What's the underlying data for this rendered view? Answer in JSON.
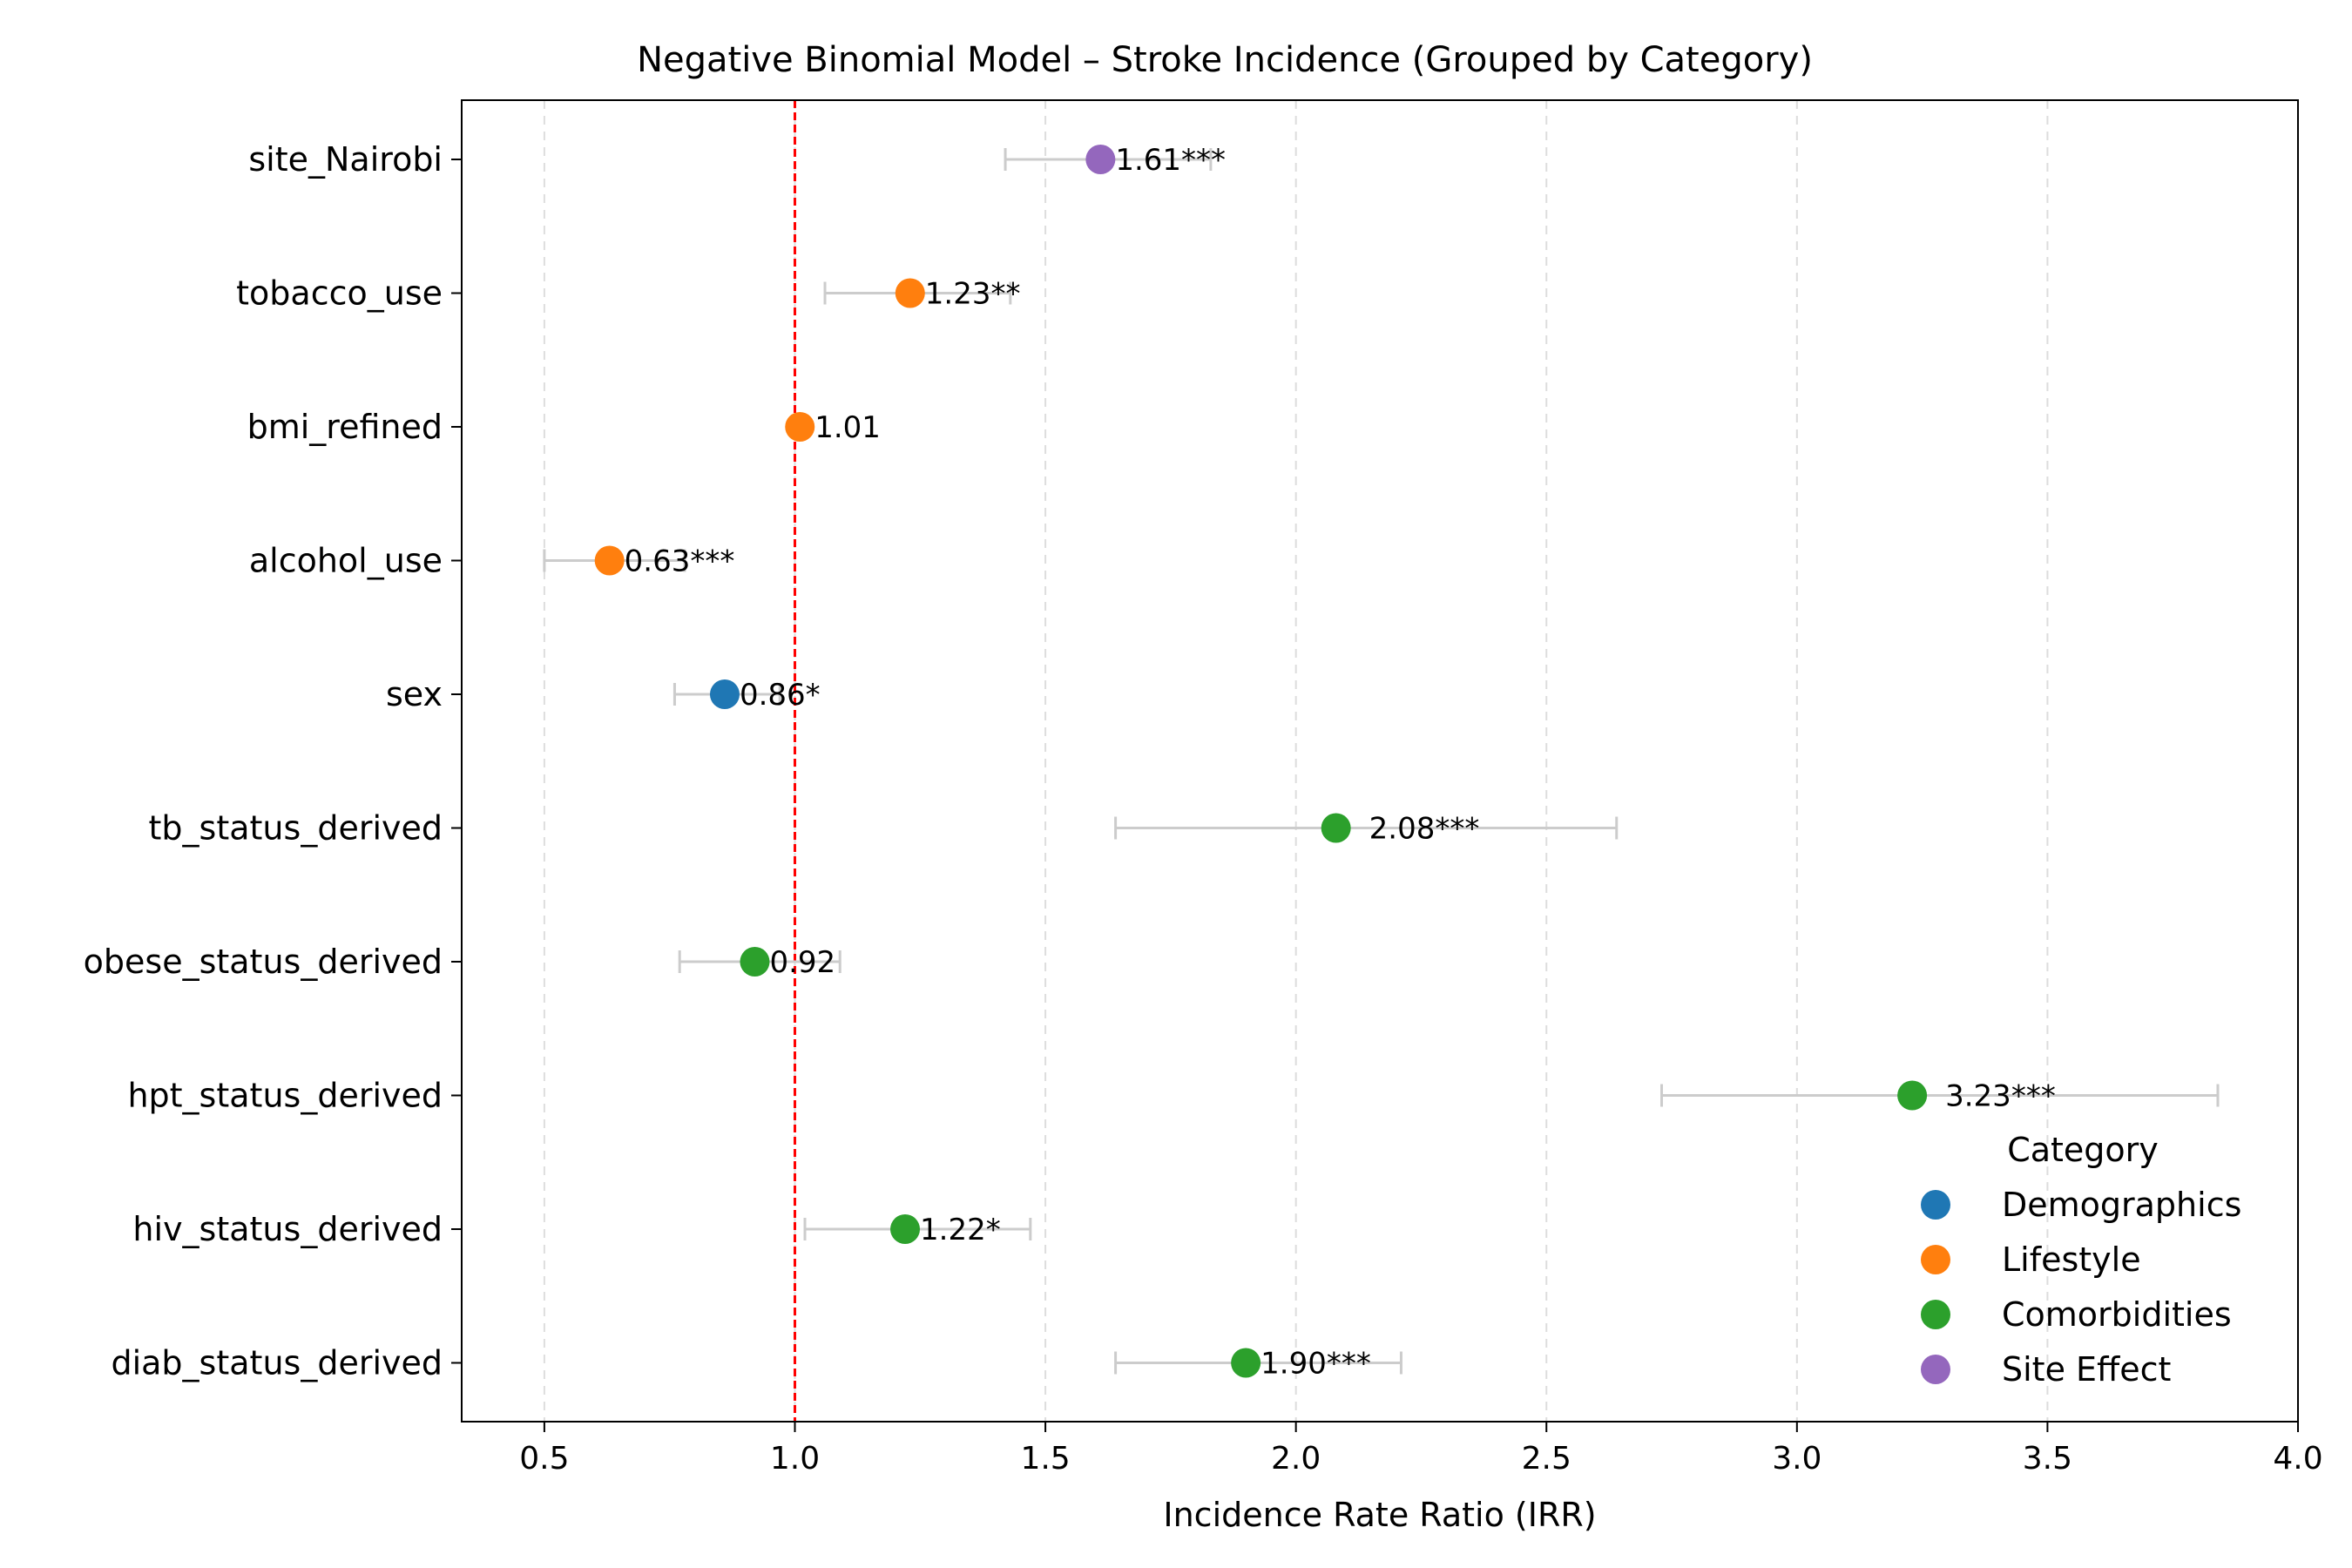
{
  "chart_data": {
    "type": "forest",
    "title": "Negative Binomial Model – Stroke Incidence (Grouped by Category)",
    "xlabel": "Incidence Rate Ratio (IRR)",
    "ylabel": "",
    "xlim": [
      0.335,
      4.0
    ],
    "xticks": [
      0.5,
      1.0,
      1.5,
      2.0,
      2.5,
      3.0,
      3.5,
      4.0
    ],
    "xtick_labels": [
      "0.5",
      "1.0",
      "1.5",
      "2.0",
      "2.5",
      "3.0",
      "3.5",
      "4.0"
    ],
    "reference_line": 1.0,
    "grid": "x-dashed",
    "legend": {
      "title": "Category",
      "placement": "lower-right",
      "entries": [
        {
          "name": "Demographics",
          "color": "#1f77b4"
        },
        {
          "name": "Lifestyle",
          "color": "#ff7f0e"
        },
        {
          "name": "Comorbidities",
          "color": "#2ca02c"
        },
        {
          "name": "Site Effect",
          "color": "#9467bd"
        }
      ]
    },
    "rows": [
      {
        "label": "site_Nairobi",
        "irr": 1.61,
        "ci_low": 1.42,
        "ci_high": 1.83,
        "annotation": "1.61***",
        "category": "Site Effect"
      },
      {
        "label": "tobacco_use",
        "irr": 1.23,
        "ci_low": 1.06,
        "ci_high": 1.43,
        "annotation": "1.23**",
        "category": "Lifestyle"
      },
      {
        "label": "bmi_refined",
        "irr": 1.01,
        "ci_low": 1.0,
        "ci_high": 1.02,
        "annotation": "1.01",
        "category": "Lifestyle"
      },
      {
        "label": "alcohol_use",
        "irr": 0.63,
        "ci_low": 0.5,
        "ci_high": 0.78,
        "annotation": "0.63***",
        "category": "Lifestyle"
      },
      {
        "label": "sex",
        "irr": 0.86,
        "ci_low": 0.76,
        "ci_high": 0.97,
        "annotation": "0.86*",
        "category": "Demographics"
      },
      {
        "label": "tb_status_derived",
        "irr": 2.08,
        "ci_low": 1.64,
        "ci_high": 2.64,
        "annotation": "2.08***",
        "category": "Comorbidities"
      },
      {
        "label": "obese_status_derived",
        "irr": 0.92,
        "ci_low": 0.77,
        "ci_high": 1.09,
        "annotation": "0.92",
        "category": "Comorbidities"
      },
      {
        "label": "hpt_status_derived",
        "irr": 3.23,
        "ci_low": 2.73,
        "ci_high": 3.84,
        "annotation": "3.23***",
        "category": "Comorbidities"
      },
      {
        "label": "hiv_status_derived",
        "irr": 1.22,
        "ci_low": 1.02,
        "ci_high": 1.47,
        "annotation": "1.22*",
        "category": "Comorbidities"
      },
      {
        "label": "diab_status_derived",
        "irr": 1.9,
        "ci_low": 1.64,
        "ci_high": 2.21,
        "annotation": "1.90***",
        "category": "Comorbidities"
      }
    ],
    "colors": {
      "reference_line": "#ff0000",
      "error_bar": "#cccccc",
      "grid": "#dddddd"
    }
  }
}
